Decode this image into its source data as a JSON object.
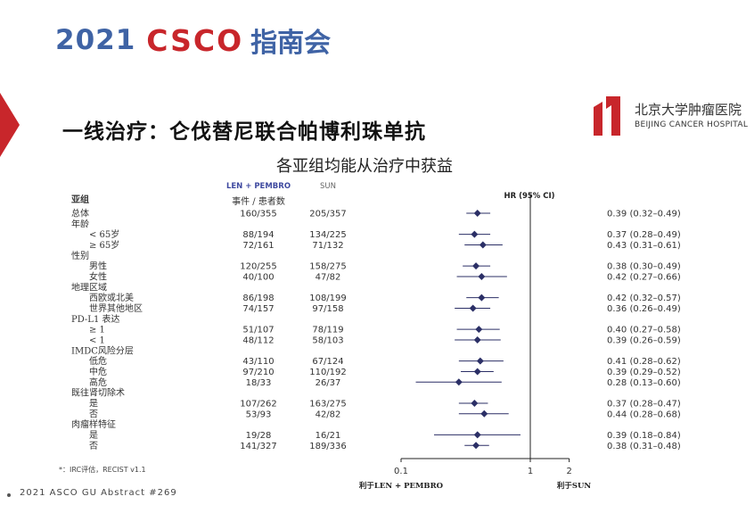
{
  "header": {
    "year": "2021",
    "brand": "CSCO",
    "meeting": "指南会"
  },
  "title": "一线治疗：仑伐替尼联合帕博利珠单抗",
  "subtitle": "各亚组均能从治疗中获益",
  "logo": {
    "name": "北京大学肿瘤医院",
    "english": "BEIJING CANCER HOSPITAL"
  },
  "footnote": "*：IRC评估，RECIST v1.1",
  "footer": "2021 ASCO GU Abstract #269",
  "colors": {
    "accent_blue": "#3f63a5",
    "accent_red": "#c8262b",
    "marker": "#2b2f66"
  },
  "chart_data": {
    "type": "forest",
    "header": {
      "subgroup": "亚组",
      "arm1": "LEN + PEMBRO",
      "arm2": "SUN",
      "events_label": "事件 / 患者数",
      "hr_label": "HR (95% CI)"
    },
    "x_scale": "log",
    "xlim": [
      0.1,
      2
    ],
    "x_ticks": [
      {
        "value": 0.1,
        "label": "0.1"
      },
      {
        "value": 1,
        "label": "1"
      },
      {
        "value": 2,
        "label": "2"
      }
    ],
    "reference_line": 1,
    "favors_left": "利于LEN + PEMBRO",
    "favors_right": "利于SUN",
    "rows": [
      {
        "label": "总体",
        "level": 0,
        "arm1": "160/355",
        "arm2": "205/357",
        "hr": 0.39,
        "lo": 0.32,
        "hi": 0.49,
        "text": "0.39 (0.32–0.49)"
      },
      {
        "label": "年龄",
        "level": 0,
        "header": true
      },
      {
        "label": "< 65岁",
        "level": 1,
        "arm1": "88/194",
        "arm2": "134/225",
        "hr": 0.37,
        "lo": 0.28,
        "hi": 0.49,
        "text": "0.37 (0.28–0.49)"
      },
      {
        "label": "≥ 65岁",
        "level": 1,
        "arm1": "72/161",
        "arm2": "71/132",
        "hr": 0.43,
        "lo": 0.31,
        "hi": 0.61,
        "text": "0.43 (0.31–0.61)"
      },
      {
        "label": "性别",
        "level": 0,
        "header": true
      },
      {
        "label": "男性",
        "level": 1,
        "arm1": "120/255",
        "arm2": "158/275",
        "hr": 0.38,
        "lo": 0.3,
        "hi": 0.49,
        "text": "0.38 (0.30–0.49)"
      },
      {
        "label": "女性",
        "level": 1,
        "arm1": "40/100",
        "arm2": "47/82",
        "hr": 0.42,
        "lo": 0.27,
        "hi": 0.66,
        "text": "0.42 (0.27–0.66)"
      },
      {
        "label": "地理区域",
        "level": 0,
        "header": true
      },
      {
        "label": "西欧或北美",
        "level": 1,
        "arm1": "86/198",
        "arm2": "108/199",
        "hr": 0.42,
        "lo": 0.32,
        "hi": 0.57,
        "text": "0.42 (0.32–0.57)"
      },
      {
        "label": "世界其他地区",
        "level": 1,
        "arm1": "74/157",
        "arm2": "97/158",
        "hr": 0.36,
        "lo": 0.26,
        "hi": 0.49,
        "text": "0.36 (0.26–0.49)"
      },
      {
        "label": "PD-L1 表达",
        "level": 0,
        "header": true
      },
      {
        "label": "≥ 1",
        "level": 1,
        "arm1": "51/107",
        "arm2": "78/119",
        "hr": 0.4,
        "lo": 0.27,
        "hi": 0.58,
        "text": "0.40 (0.27–0.58)"
      },
      {
        "label": "< 1",
        "level": 1,
        "arm1": "48/112",
        "arm2": "58/103",
        "hr": 0.39,
        "lo": 0.26,
        "hi": 0.59,
        "text": "0.39 (0.26–0.59)"
      },
      {
        "label": "IMDC风险分层",
        "level": 0,
        "header": true
      },
      {
        "label": "低危",
        "level": 1,
        "arm1": "43/110",
        "arm2": "67/124",
        "hr": 0.41,
        "lo": 0.28,
        "hi": 0.62,
        "text": "0.41 (0.28–0.62)"
      },
      {
        "label": "中危",
        "level": 1,
        "arm1": "97/210",
        "arm2": "110/192",
        "hr": 0.39,
        "lo": 0.29,
        "hi": 0.52,
        "text": "0.39 (0.29–0.52)"
      },
      {
        "label": "高危",
        "level": 1,
        "arm1": "18/33",
        "arm2": "26/37",
        "hr": 0.28,
        "lo": 0.13,
        "hi": 0.6,
        "text": "0.28 (0.13–0.60)"
      },
      {
        "label": "既往肾切除术",
        "level": 0,
        "header": true
      },
      {
        "label": "是",
        "level": 1,
        "arm1": "107/262",
        "arm2": "163/275",
        "hr": 0.37,
        "lo": 0.28,
        "hi": 0.47,
        "text": "0.37 (0.28–0.47)"
      },
      {
        "label": "否",
        "level": 1,
        "arm1": "53/93",
        "arm2": "42/82",
        "hr": 0.44,
        "lo": 0.28,
        "hi": 0.68,
        "text": "0.44 (0.28–0.68)"
      },
      {
        "label": "肉瘤样特征",
        "level": 0,
        "header": true
      },
      {
        "label": "是",
        "level": 1,
        "arm1": "19/28",
        "arm2": "16/21",
        "hr": 0.39,
        "lo": 0.18,
        "hi": 0.84,
        "text": "0.39 (0.18–0.84)"
      },
      {
        "label": "否",
        "level": 1,
        "arm1": "141/327",
        "arm2": "189/336",
        "hr": 0.38,
        "lo": 0.31,
        "hi": 0.48,
        "text": "0.38 (0.31–0.48)"
      }
    ]
  }
}
